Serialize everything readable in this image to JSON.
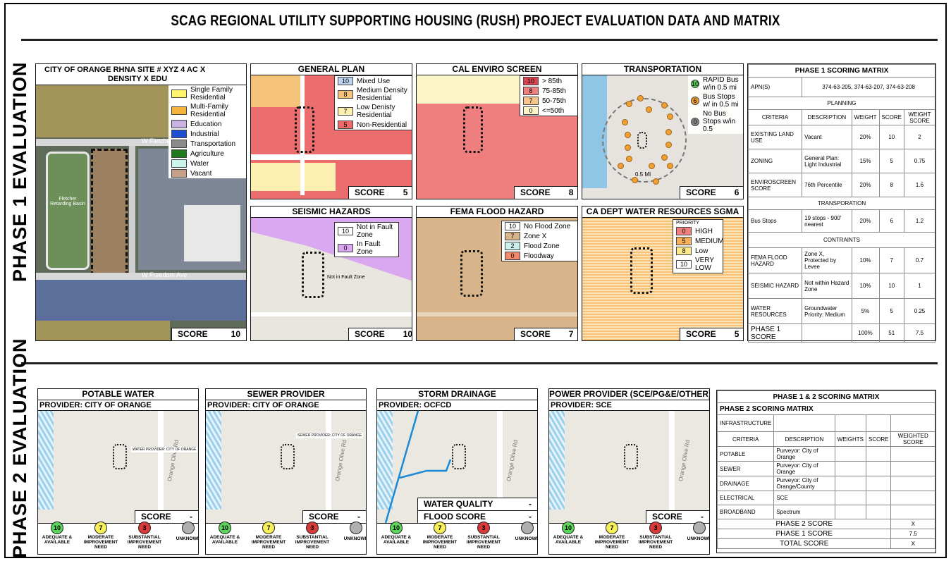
{
  "title": "SCAG REGIONAL UTILITY SUPPORTING HOUSING (RUSH) PROJECT EVALUATION DATA AND MATRIX",
  "phase1_label": "PHASE 1 EVALUATION",
  "phase2_label": "PHASE 2 EVALUATION",
  "score_label": "SCORE",
  "site": {
    "header_line1": "CITY OF ORANGE    RHNA SITE # XYZ   4 AC  X",
    "header_line2": "DENSITY  X EDU",
    "streets": [
      "W Fletcher Ave",
      "W Freedom Ave",
      "N Batavia St"
    ],
    "basin": "Fletcher Retarding Basin",
    "legend": [
      {
        "label": "Single Family Residential",
        "color": "#fff46b"
      },
      {
        "label": "Multi-Family Residential",
        "color": "#f5b33c"
      },
      {
        "label": "Education",
        "color": "#c7b2e2"
      },
      {
        "label": "Industrial",
        "color": "#1f4fd0"
      },
      {
        "label": "Transportation",
        "color": "#8a8a8a"
      },
      {
        "label": "Agriculture",
        "color": "#1f7a1f"
      },
      {
        "label": "Water",
        "color": "#c9f5ec"
      },
      {
        "label": "Vacant",
        "color": "#c7a08a"
      }
    ],
    "score": "10"
  },
  "general_plan": {
    "title": "GENERAL PLAN",
    "legend": [
      {
        "code": "10",
        "label": "Mixed Use",
        "color": "#bcd4f0"
      },
      {
        "code": "8",
        "label": "Medium Density Residential",
        "color": "#f5c27a"
      },
      {
        "code": "7",
        "label": "Low Denisty Residential",
        "color": "#fbf0b0"
      },
      {
        "code": "5",
        "label": "Non-Residential",
        "color": "#ef6b6b"
      }
    ],
    "score": "5"
  },
  "cal_enviro": {
    "title": "CAL ENVIRO SCREEN",
    "legend": [
      {
        "code": "10",
        "label": "> 85th",
        "color": "#d9424f"
      },
      {
        "code": "8",
        "label": "75-85th",
        "color": "#f08080"
      },
      {
        "code": "7",
        "label": "50-75th",
        "color": "#f7c48a"
      },
      {
        "code": "0",
        "label": "<=50th",
        "color": "#fbf5c8"
      }
    ],
    "score": "8"
  },
  "transportation": {
    "title": "TRANSPORTATION",
    "legend": [
      {
        "code": "10",
        "label": "RAPID Bus w/in 0.5 mi",
        "color": "#5cc85c"
      },
      {
        "code": "6",
        "label": "Bus Stops w/ in 0.5 mi",
        "color": "#f0a030"
      },
      {
        "code": "0",
        "label": "No Bus Stops w/in 0.5",
        "color": "#888888"
      }
    ],
    "distance": "0.5 MI",
    "score": "6"
  },
  "seismic": {
    "title": "SEISMIC HAZARDS",
    "legend": [
      {
        "code": "10",
        "label": "Not in Fault Zone",
        "color": "#ffffff"
      },
      {
        "code": "0",
        "label": "In Fault Zone",
        "color": "#d9a8f0"
      }
    ],
    "map_label": "Not in Fault Zone",
    "score": "10"
  },
  "fema": {
    "title": "FEMA FLOOD HAZARD",
    "legend": [
      {
        "code": "10",
        "label": "No Flood Zone",
        "color": "#ffffff"
      },
      {
        "code": "7",
        "label": "Zone X",
        "color": "#d7b48a"
      },
      {
        "code": "2",
        "label": "Flood Zone",
        "color": "#c9f0ea"
      },
      {
        "code": "0",
        "label": "Floodway",
        "color": "#f08a6a"
      }
    ],
    "score": "7"
  },
  "sgma": {
    "title": "CA DEPT WATER RESOURCES SGMA",
    "legend_title": "PRIORITY",
    "legend": [
      {
        "code": "0",
        "label": "HIGH",
        "color": "#f08080"
      },
      {
        "code": "5",
        "label": "MEDIUM",
        "color": "#f5b05a"
      },
      {
        "code": "8",
        "label": "Low",
        "color": "#fbe98a"
      },
      {
        "code": "10",
        "label": "VERY LOW",
        "color": "#ffffff"
      }
    ],
    "score": "5"
  },
  "phase1_matrix": {
    "title": "PHASE 1 SCORING MATRIX",
    "apn_label": "APN(S)",
    "apn_value": "374-63-205, 374-63-207, 374-63-208",
    "planning": "PLANNING",
    "headers": [
      "CRITERIA",
      "DESCRIPTION",
      "WEIGHT",
      "SCORE",
      "WEIGHT SCORE"
    ],
    "planning_rows": [
      [
        "EXISTING LAND USE",
        "Vacant",
        "20%",
        "10",
        "2"
      ],
      [
        "ZONING",
        "General Plan: Light Industrial",
        "15%",
        "5",
        "0.75"
      ],
      [
        "ENVIROSCREEN SCORE",
        "76th Percentile",
        "20%",
        "8",
        "1.6"
      ]
    ],
    "transportation": "TRANSPORATION",
    "transport_rows": [
      [
        "Bus Stops",
        "19 stops - 900' nearest",
        "20%",
        "6",
        "1.2"
      ]
    ],
    "constraints": "CONTRAINTS",
    "constraint_rows": [
      [
        "FEMA FLOOD HAZARD",
        "Zone X, Protected by Levee",
        "10%",
        "7",
        "0.7"
      ],
      [
        "SEISMIC HAZARD",
        "Not within Hazard Zone",
        "10%",
        "10",
        "1"
      ],
      [
        "WATER RESOURCES",
        "Groundwater Priority: Medium",
        "5%",
        "5",
        "0.25"
      ]
    ],
    "total": [
      "PHASE 1 SCORE",
      "",
      "100%",
      "51",
      "7.5"
    ]
  },
  "phase2_panels": [
    {
      "title": "POTABLE WATER",
      "provider": "PROVIDER: CITY OF ORANGE",
      "map_label": "WATER PROVIDER: CITY OF ORANGE",
      "score": "-"
    },
    {
      "title": "SEWER PROVIDER",
      "provider": "PROVIDER: CITY OF ORANGE",
      "map_label": "SEWER PROVIDER: CITY OF ORANGE",
      "score": "-"
    },
    {
      "title": "STORM DRAINAGE",
      "provider": "PROVIDER: OCFCD",
      "wq_label": "WATER QUALITY SCORE",
      "wq_score": "-",
      "flood_label": "FLOOD SCORE",
      "flood_score": "-"
    },
    {
      "title": "POWER PROVIDER (SCE/PG&E/OTHER)",
      "provider": "PROVIDER: SCE",
      "score": "-"
    }
  ],
  "road_label": "Orange Olive Rd",
  "phase2_key": [
    {
      "code": "10",
      "label": "ADEQUATE & AVAILABLE",
      "color": "#5cd65c"
    },
    {
      "code": "7",
      "label": "MODERATE IMPROVEMENT NEED",
      "color": "#f7f05a"
    },
    {
      "code": "3",
      "label": "SUBSTANTIAL IMPROVEMENT NEED",
      "color": "#d93a3a"
    },
    {
      "code": "",
      "label": "UNKNOWN",
      "color": "#b0b0b0"
    }
  ],
  "phase2_matrix": {
    "title": "PHASE 1 & 2 SCORING MATRIX",
    "subtitle": "PHASE 2 SCORING MATRIX",
    "infrastructure": "INFRASTRUCTURE",
    "headers": [
      "CRITERIA",
      "DESCRIPTION",
      "WEIGHTS",
      "SCORE",
      "WEIGHTED SCORE"
    ],
    "rows": [
      [
        "POTABLE",
        "Purveyor: City of Orange"
      ],
      [
        "SEWER",
        "Purveyor: City of Orange"
      ],
      [
        "DRAINAGE",
        "Purveyor: City of Orange/County"
      ],
      [
        "ELECTRICAL",
        "SCE"
      ],
      [
        "BROADBAND",
        "Spectrum"
      ]
    ],
    "totals": [
      {
        "label": "PHASE 2 SCORE",
        "value": "X"
      },
      {
        "label": "PHASE 1 SCORE",
        "value": "7.5"
      },
      {
        "label": "TOTAL SCORE",
        "value": "X"
      }
    ]
  }
}
